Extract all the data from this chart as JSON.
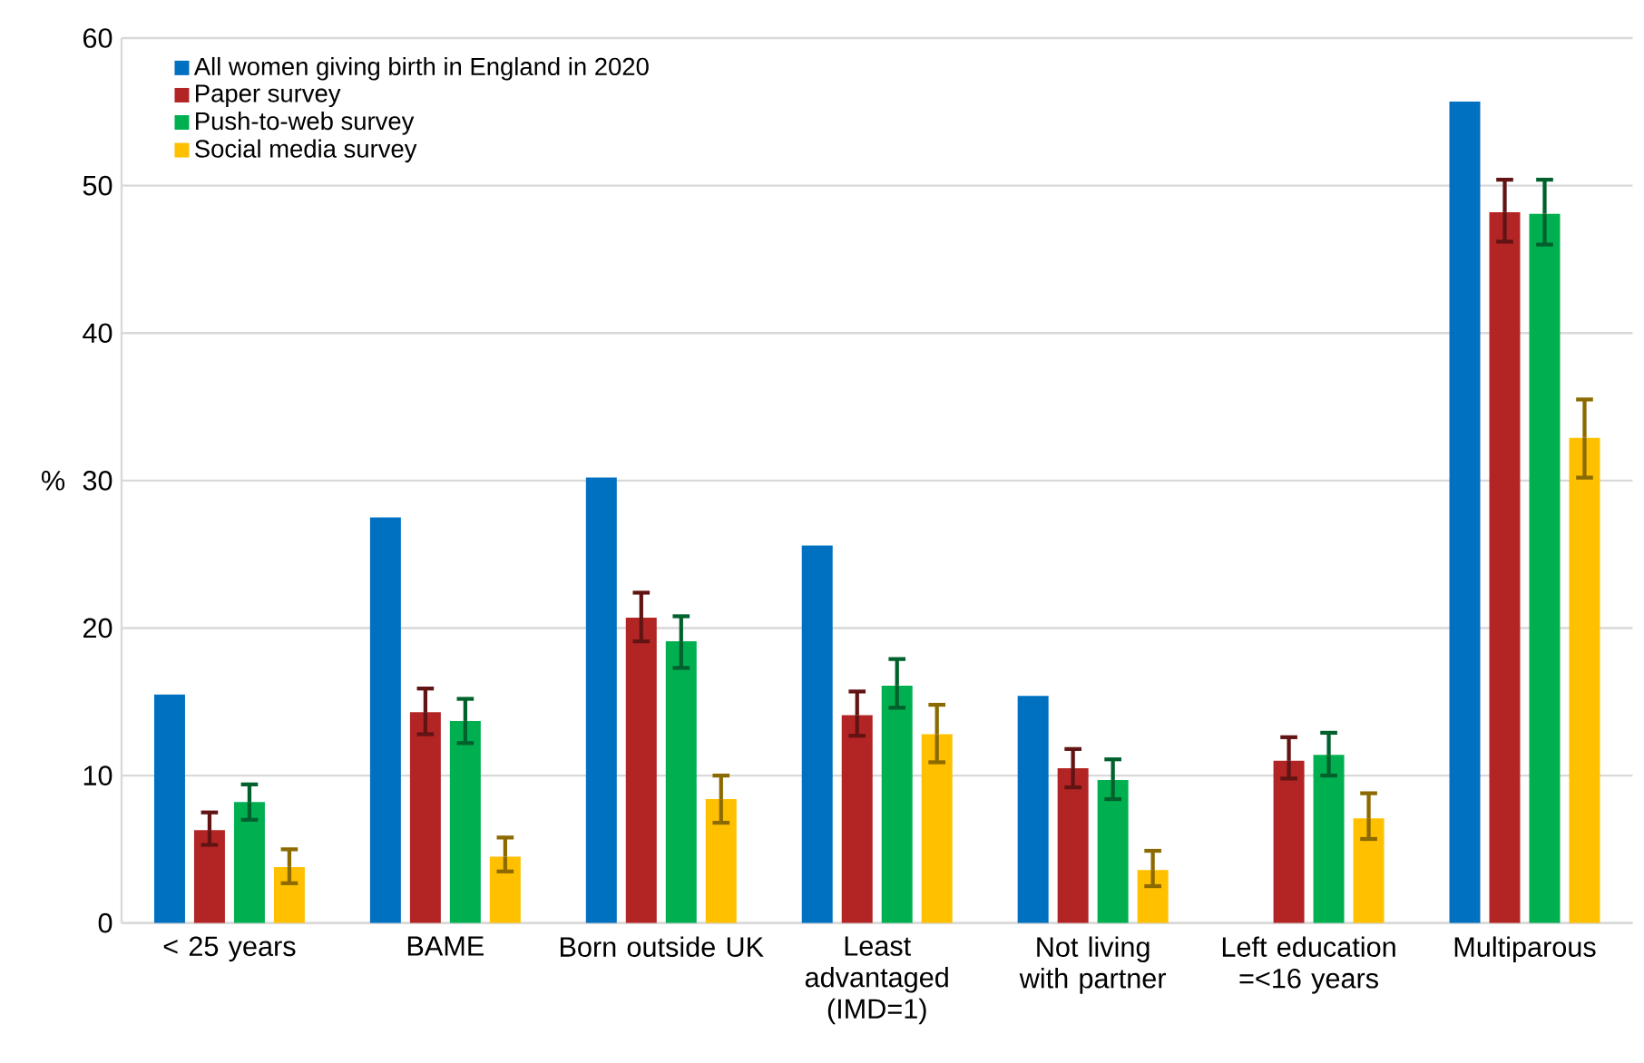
{
  "chart_data": {
    "type": "bar",
    "ylabel": "%",
    "categories": [
      "< 25 years",
      "BAME",
      "Born outside UK",
      "Least advantaged (IMD=1)",
      "Not living with partner",
      "Left education =<16 years",
      "Multiparous"
    ],
    "series": [
      {
        "name": "All women giving birth in England in 2020",
        "color": "#0070c0",
        "values": [
          15.5,
          27.5,
          30.2,
          25.6,
          15.4,
          null,
          55.7
        ]
      },
      {
        "name": "Paper survey",
        "color": "#b22524",
        "values": [
          6.3,
          14.3,
          20.7,
          14.1,
          10.5,
          11.0,
          48.2
        ],
        "errors": [
          [
            5.3,
            7.5
          ],
          [
            12.8,
            15.9
          ],
          [
            19.1,
            22.4
          ],
          [
            12.7,
            15.7
          ],
          [
            9.2,
            11.8
          ],
          [
            9.8,
            12.6
          ],
          [
            46.2,
            50.4
          ]
        ]
      },
      {
        "name": "Push-to-web survey",
        "color": "#00b050",
        "values": [
          8.2,
          13.7,
          19.1,
          16.1,
          9.7,
          11.4,
          48.1
        ],
        "errors": [
          [
            7.0,
            9.4
          ],
          [
            12.2,
            15.2
          ],
          [
            17.3,
            20.8
          ],
          [
            14.6,
            17.9
          ],
          [
            8.4,
            11.1
          ],
          [
            10.0,
            12.9
          ],
          [
            46.0,
            50.4
          ]
        ]
      },
      {
        "name": "Social media survey",
        "color": "#ffc000",
        "values": [
          3.8,
          4.5,
          8.4,
          12.8,
          3.6,
          7.1,
          32.9
        ],
        "errors": [
          [
            2.7,
            5.0
          ],
          [
            3.5,
            5.8
          ],
          [
            6.8,
            10.0
          ],
          [
            10.9,
            14.8
          ],
          [
            2.5,
            4.9
          ],
          [
            5.7,
            8.8
          ],
          [
            30.2,
            35.5
          ]
        ]
      }
    ],
    "ylim": [
      0,
      60
    ],
    "yticks": [
      0,
      10,
      20,
      30,
      40,
      50,
      60
    ],
    "grid": "y",
    "legend": "top left"
  }
}
